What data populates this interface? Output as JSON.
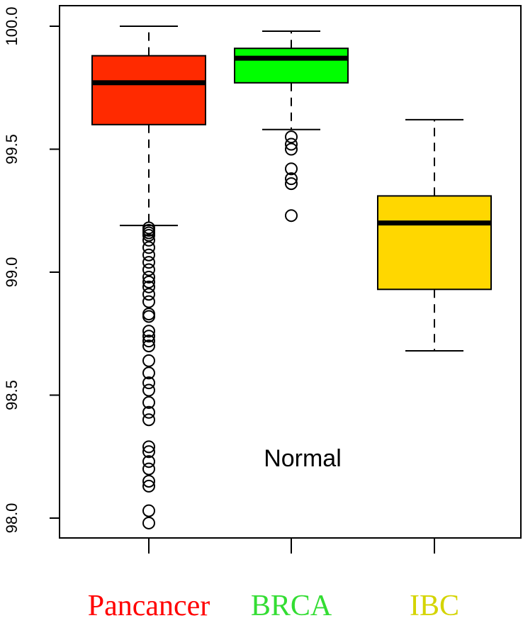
{
  "chart_data": {
    "type": "box",
    "title": "",
    "xlabel": "",
    "ylabel": "",
    "ylim": [
      97.92,
      100.08
    ],
    "yticks": [
      98.0,
      98.5,
      99.0,
      99.5,
      100.0
    ],
    "ytick_labels": [
      "98.0",
      "98.5",
      "99.0",
      "99.5",
      "100.0"
    ],
    "grid": false,
    "annotation": "Normal",
    "groups": [
      {
        "name": "Pancancer",
        "color": "#FF2A00",
        "label_color": "#FF0000",
        "whisker_low": 99.19,
        "q1": 99.6,
        "median": 99.77,
        "q3": 99.88,
        "whisker_high": 100.0,
        "outliers": [
          99.18,
          99.17,
          99.16,
          99.15,
          99.13,
          99.1,
          99.07,
          99.04,
          99.01,
          98.98,
          98.96,
          98.94,
          98.91,
          98.88,
          98.83,
          98.82,
          98.76,
          98.74,
          98.72,
          98.7,
          98.64,
          98.59,
          98.55,
          98.52,
          98.47,
          98.43,
          98.4,
          98.29,
          98.27,
          98.23,
          98.2,
          98.15,
          98.13,
          98.03,
          97.98
        ]
      },
      {
        "name": "BRCA",
        "color": "#00FF00",
        "label_color": "#33DD33",
        "whisker_low": 99.58,
        "q1": 99.77,
        "median": 99.87,
        "q3": 99.91,
        "whisker_high": 99.98,
        "outliers": [
          99.55,
          99.52,
          99.5,
          99.42,
          99.38,
          99.36,
          99.23
        ]
      },
      {
        "name": "IBC",
        "color": "#FFD700",
        "label_color": "#D4D400",
        "whisker_low": 98.68,
        "q1": 98.93,
        "median": 99.2,
        "q3": 99.31,
        "whisker_high": 99.62,
        "outliers": []
      }
    ]
  }
}
